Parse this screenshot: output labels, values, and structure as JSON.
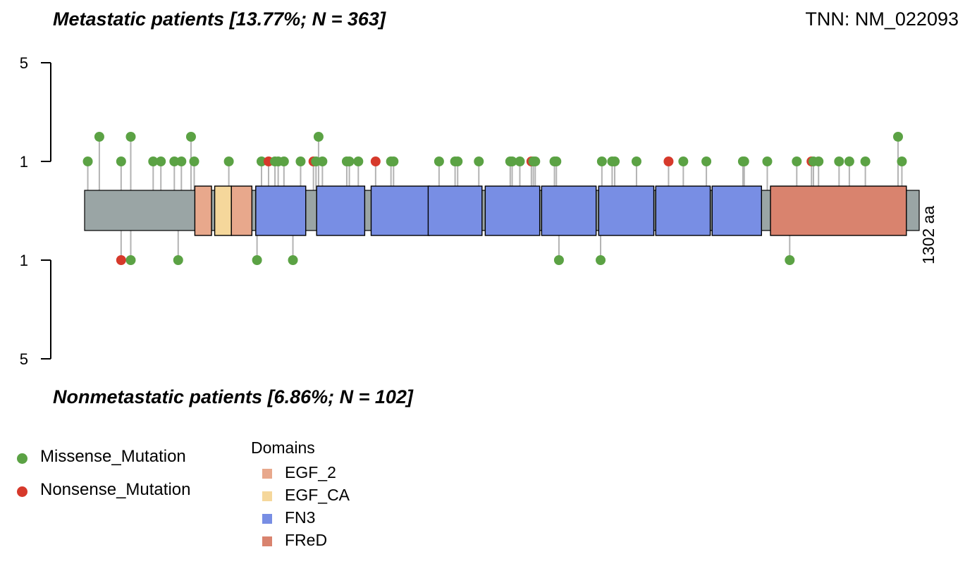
{
  "chart_data": {
    "type": "lollipop",
    "gene_label": "TNN: NM_022093",
    "protein_length": 1302,
    "length_label": "1302 aa",
    "top_title": "Metastatic patients [13.77%; N = 363]",
    "bottom_title": "Nonmetastatic patients [6.86%; N = 102]",
    "y_ticks_top": [
      "5",
      "1"
    ],
    "y_ticks_bottom": [
      "1",
      "5"
    ],
    "domains": [
      {
        "name": "EGF_2",
        "start": 172,
        "end": 198
      },
      {
        "name": "EGF_CA",
        "start": 203,
        "end": 229
      },
      {
        "name": "EGF_2",
        "start": 229,
        "end": 261
      },
      {
        "name": "FN3",
        "start": 267,
        "end": 345
      },
      {
        "name": "FN3",
        "start": 362,
        "end": 437
      },
      {
        "name": "FN3",
        "start": 447,
        "end": 538
      },
      {
        "name": "FN3",
        "start": 536,
        "end": 620
      },
      {
        "name": "FN3",
        "start": 625,
        "end": 710
      },
      {
        "name": "FN3",
        "start": 713,
        "end": 798
      },
      {
        "name": "FN3",
        "start": 802,
        "end": 888
      },
      {
        "name": "FN3",
        "start": 891,
        "end": 976
      },
      {
        "name": "FN3",
        "start": 979,
        "end": 1056
      },
      {
        "name": "FReD",
        "start": 1070,
        "end": 1282
      }
    ],
    "top_mutations": [
      {
        "pos": 5,
        "count": 1,
        "type": "Missense_Mutation"
      },
      {
        "pos": 23,
        "count": 2,
        "type": "Missense_Mutation"
      },
      {
        "pos": 57,
        "count": 1,
        "type": "Missense_Mutation"
      },
      {
        "pos": 72,
        "count": 2,
        "type": "Missense_Mutation"
      },
      {
        "pos": 107,
        "count": 1,
        "type": "Missense_Mutation"
      },
      {
        "pos": 119,
        "count": 1,
        "type": "Missense_Mutation"
      },
      {
        "pos": 140,
        "count": 1,
        "type": "Missense_Mutation"
      },
      {
        "pos": 151,
        "count": 1,
        "type": "Missense_Mutation"
      },
      {
        "pos": 166,
        "count": 2,
        "type": "Missense_Mutation"
      },
      {
        "pos": 171,
        "count": 1,
        "type": "Missense_Mutation"
      },
      {
        "pos": 225,
        "count": 1,
        "type": "Missense_Mutation"
      },
      {
        "pos": 276,
        "count": 1,
        "type": "Missense_Mutation"
      },
      {
        "pos": 287,
        "count": 1,
        "type": "Nonsense_Mutation"
      },
      {
        "pos": 297,
        "count": 1,
        "type": "Missense_Mutation"
      },
      {
        "pos": 302,
        "count": 1,
        "type": "Missense_Mutation"
      },
      {
        "pos": 311,
        "count": 1,
        "type": "Missense_Mutation"
      },
      {
        "pos": 337,
        "count": 1,
        "type": "Missense_Mutation"
      },
      {
        "pos": 357,
        "count": 1,
        "type": "Nonsense_Mutation"
      },
      {
        "pos": 361,
        "count": 1,
        "type": "Missense_Mutation"
      },
      {
        "pos": 365,
        "count": 2,
        "type": "Missense_Mutation"
      },
      {
        "pos": 371,
        "count": 1,
        "type": "Missense_Mutation"
      },
      {
        "pos": 409,
        "count": 1,
        "type": "Missense_Mutation"
      },
      {
        "pos": 413,
        "count": 1,
        "type": "Missense_Mutation"
      },
      {
        "pos": 427,
        "count": 1,
        "type": "Missense_Mutation"
      },
      {
        "pos": 454,
        "count": 1,
        "type": "Nonsense_Mutation"
      },
      {
        "pos": 478,
        "count": 1,
        "type": "Missense_Mutation"
      },
      {
        "pos": 482,
        "count": 1,
        "type": "Missense_Mutation"
      },
      {
        "pos": 553,
        "count": 1,
        "type": "Missense_Mutation"
      },
      {
        "pos": 578,
        "count": 1,
        "type": "Missense_Mutation"
      },
      {
        "pos": 582,
        "count": 1,
        "type": "Missense_Mutation"
      },
      {
        "pos": 615,
        "count": 1,
        "type": "Missense_Mutation"
      },
      {
        "pos": 664,
        "count": 1,
        "type": "Missense_Mutation"
      },
      {
        "pos": 667,
        "count": 1,
        "type": "Missense_Mutation"
      },
      {
        "pos": 679,
        "count": 1,
        "type": "Missense_Mutation"
      },
      {
        "pos": 697,
        "count": 1,
        "type": "Nonsense_Mutation"
      },
      {
        "pos": 700,
        "count": 1,
        "type": "Missense_Mutation"
      },
      {
        "pos": 703,
        "count": 1,
        "type": "Missense_Mutation"
      },
      {
        "pos": 733,
        "count": 1,
        "type": "Missense_Mutation"
      },
      {
        "pos": 736,
        "count": 1,
        "type": "Missense_Mutation"
      },
      {
        "pos": 807,
        "count": 1,
        "type": "Missense_Mutation"
      },
      {
        "pos": 823,
        "count": 1,
        "type": "Missense_Mutation"
      },
      {
        "pos": 827,
        "count": 1,
        "type": "Missense_Mutation"
      },
      {
        "pos": 861,
        "count": 1,
        "type": "Missense_Mutation"
      },
      {
        "pos": 911,
        "count": 1,
        "type": "Nonsense_Mutation"
      },
      {
        "pos": 934,
        "count": 1,
        "type": "Missense_Mutation"
      },
      {
        "pos": 970,
        "count": 1,
        "type": "Missense_Mutation"
      },
      {
        "pos": 1027,
        "count": 1,
        "type": "Missense_Mutation"
      },
      {
        "pos": 1029,
        "count": 1,
        "type": "Missense_Mutation"
      },
      {
        "pos": 1065,
        "count": 1,
        "type": "Missense_Mutation"
      },
      {
        "pos": 1111,
        "count": 1,
        "type": "Missense_Mutation"
      },
      {
        "pos": 1134,
        "count": 1,
        "type": "Nonsense_Mutation"
      },
      {
        "pos": 1137,
        "count": 1,
        "type": "Missense_Mutation"
      },
      {
        "pos": 1145,
        "count": 1,
        "type": "Missense_Mutation"
      },
      {
        "pos": 1177,
        "count": 1,
        "type": "Missense_Mutation"
      },
      {
        "pos": 1193,
        "count": 1,
        "type": "Missense_Mutation"
      },
      {
        "pos": 1218,
        "count": 1,
        "type": "Missense_Mutation"
      },
      {
        "pos": 1269,
        "count": 2,
        "type": "Missense_Mutation"
      },
      {
        "pos": 1275,
        "count": 1,
        "type": "Missense_Mutation"
      }
    ],
    "bottom_mutations": [
      {
        "pos": 57,
        "count": 1,
        "type": "Nonsense_Mutation"
      },
      {
        "pos": 72,
        "count": 1,
        "type": "Missense_Mutation"
      },
      {
        "pos": 146,
        "count": 1,
        "type": "Missense_Mutation"
      },
      {
        "pos": 269,
        "count": 1,
        "type": "Missense_Mutation"
      },
      {
        "pos": 325,
        "count": 1,
        "type": "Missense_Mutation"
      },
      {
        "pos": 740,
        "count": 1,
        "type": "Missense_Mutation"
      },
      {
        "pos": 805,
        "count": 1,
        "type": "Missense_Mutation"
      },
      {
        "pos": 1100,
        "count": 1,
        "type": "Missense_Mutation"
      }
    ],
    "legend_mutations": [
      {
        "label": "Missense_Mutation",
        "color": "#5ba244"
      },
      {
        "label": "Nonsense_Mutation",
        "color": "#d6392b"
      }
    ],
    "legend_domains_title": "Domains",
    "legend_domains": [
      {
        "label": "EGF_2",
        "color": "#e8a88c"
      },
      {
        "label": "EGF_CA",
        "color": "#f5d79b"
      },
      {
        "label": "FN3",
        "color": "#788ee4"
      },
      {
        "label": "FReD",
        "color": "#d9836e"
      }
    ],
    "backbone_color": "#9aa5a5",
    "stem_color": "#b3b3b3"
  }
}
